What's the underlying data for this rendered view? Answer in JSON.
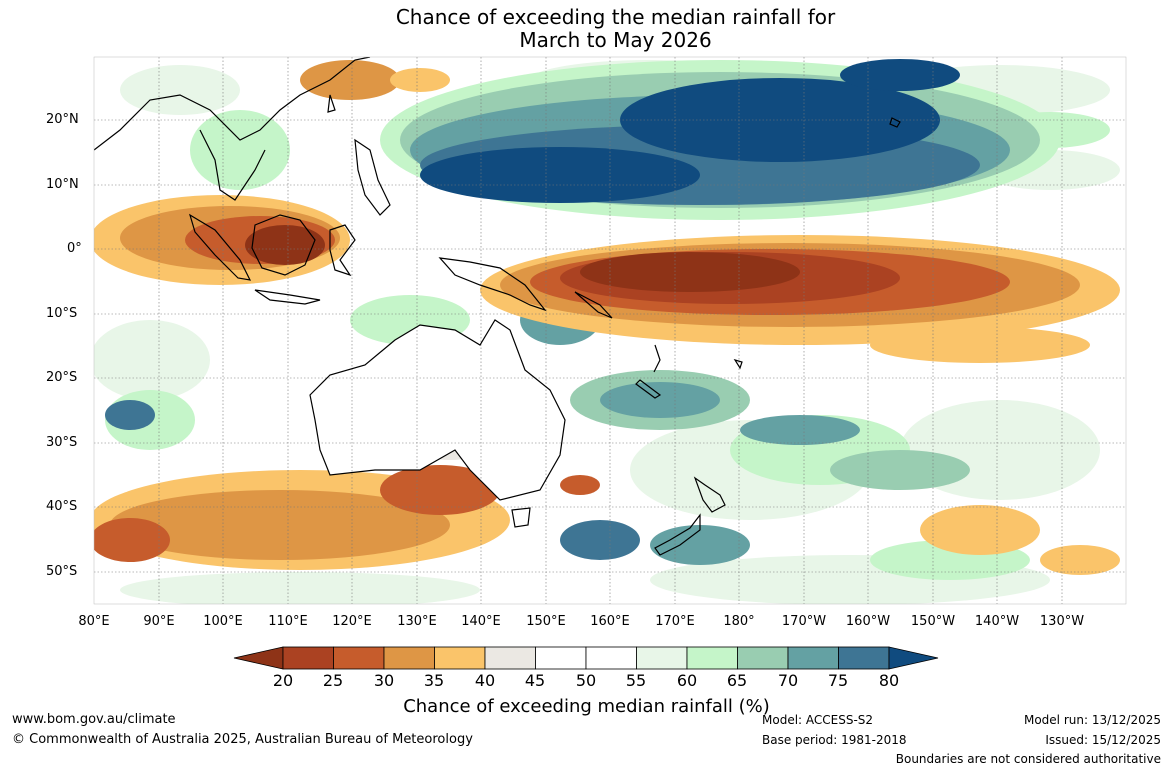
{
  "title": {
    "line1": "Chance of exceeding the median rainfall for",
    "line2": "March to May 2026"
  },
  "lon_labels": [
    "80°E",
    "90°E",
    "100°E",
    "110°E",
    "120°E",
    "130°E",
    "140°E",
    "150°E",
    "160°E",
    "170°E",
    "180°",
    "170°W",
    "160°W",
    "150°W",
    "140°W",
    "130°W"
  ],
  "lat_labels": [
    "20°N",
    "10°N",
    "0°",
    "10°S",
    "20°S",
    "30°S",
    "40°S",
    "50°S"
  ],
  "legend": {
    "title": "Chance of exceeding median rainfall (%)",
    "ticks": [
      "20",
      "25",
      "30",
      "35",
      "40",
      "45",
      "50",
      "55",
      "60",
      "65",
      "70",
      "75",
      "80"
    ],
    "colors": [
      "#8e3317",
      "#ab4222",
      "#c65c2c",
      "#de9645",
      "#fac46a",
      "#ebe8e3",
      "#ffffff",
      "#ffffff",
      "#e8f6e8",
      "#c5f5c9",
      "#99cdb1",
      "#64a1a3",
      "#3e7594",
      "#104b7f"
    ]
  },
  "footer": {
    "website": "www.bom.gov.au/climate",
    "copyright": "© Commonwealth of Australia 2025, Australian Bureau of Meteorology",
    "model": "Model: ACCESS-S2",
    "base_period": "Base period: 1981-2018",
    "model_run": "Model run: 13/12/2025",
    "issued": "Issued: 15/12/2025",
    "disclaimer": "Boundaries are not considered authoritative"
  }
}
